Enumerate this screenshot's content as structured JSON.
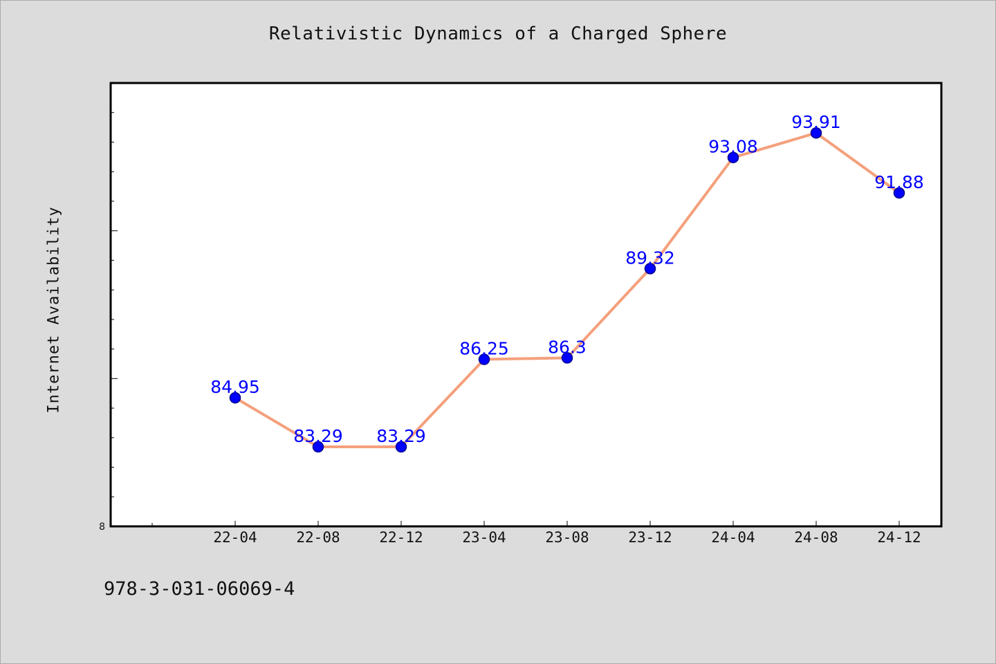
{
  "chart_data": {
    "type": "line",
    "title": "Relativistic Dynamics of a Charged Sphere",
    "ylabel": "Internet Availability",
    "xlabel": "",
    "categories": [
      "22-04",
      "22-08",
      "22-12",
      "23-04",
      "23-08",
      "23-12",
      "24-04",
      "24-08",
      "24-12"
    ],
    "series": [
      {
        "values": [
          84.95,
          83.29,
          83.29,
          86.25,
          86.3,
          89.32,
          93.08,
          93.91,
          91.88
        ],
        "labels": [
          "84.95",
          "83.29",
          "83.29",
          "86.25",
          "86.3",
          "89.32",
          "93.08",
          "93.91",
          "91.88"
        ]
      }
    ],
    "ylim": [
      80.6,
      95.6
    ],
    "y_min_label": "8",
    "grid": false,
    "legend": "none",
    "colors": {
      "line": "#f4a07c",
      "marker": "#0000ff",
      "marker_edge": "#00008b",
      "data_label": "#0000ff",
      "plot_bg": "#ffffff",
      "figure_bg": "#dcdcdc"
    }
  },
  "footer": {
    "identifier": "978-3-031-06069-4"
  }
}
